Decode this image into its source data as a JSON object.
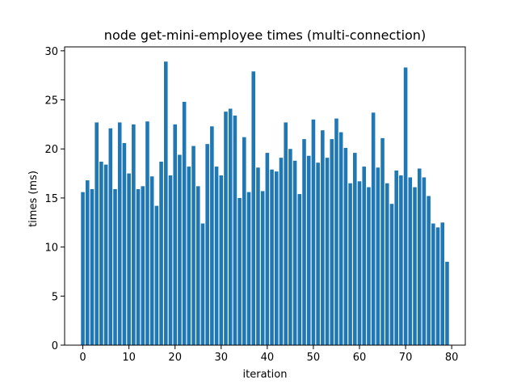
{
  "chart_data": {
    "type": "bar",
    "title": "node get-mini-employee times (multi-connection)",
    "xlabel": "iteration",
    "ylabel": "times (ms)",
    "xlim": [
      -3.95,
      82.95
    ],
    "ylim": [
      0,
      30.4
    ],
    "xticks": [
      0,
      10,
      20,
      30,
      40,
      50,
      60,
      70,
      80
    ],
    "yticks": [
      0,
      5,
      10,
      15,
      20,
      25,
      30
    ],
    "bar_color": "#1f77b4",
    "x": [
      0,
      1,
      2,
      3,
      4,
      5,
      6,
      7,
      8,
      9,
      10,
      11,
      12,
      13,
      14,
      15,
      16,
      17,
      18,
      19,
      20,
      21,
      22,
      23,
      24,
      25,
      26,
      27,
      28,
      29,
      30,
      31,
      32,
      33,
      34,
      35,
      36,
      37,
      38,
      39,
      40,
      41,
      42,
      43,
      44,
      45,
      46,
      47,
      48,
      49,
      50,
      51,
      52,
      53,
      54,
      55,
      56,
      57,
      58,
      59,
      60,
      61,
      62,
      63,
      64,
      65,
      66,
      67,
      68,
      69,
      70,
      71,
      72,
      73,
      74,
      75,
      76,
      77,
      78,
      79
    ],
    "values": [
      15.6,
      16.8,
      15.9,
      22.7,
      18.7,
      18.4,
      22.1,
      15.9,
      22.7,
      20.6,
      17.5,
      22.5,
      15.9,
      16.2,
      22.8,
      17.2,
      14.2,
      18.7,
      28.9,
      17.3,
      22.5,
      19.4,
      24.8,
      18.2,
      20.3,
      16.2,
      12.4,
      20.5,
      22.3,
      18.2,
      17.3,
      23.8,
      24.1,
      23.4,
      15.0,
      21.2,
      15.6,
      27.9,
      18.1,
      15.7,
      19.6,
      17.9,
      17.7,
      19.1,
      22.7,
      20.0,
      18.8,
      15.4,
      21.0,
      19.3,
      23.0,
      18.6,
      21.9,
      19.1,
      21.0,
      23.1,
      21.7,
      20.1,
      16.5,
      19.6,
      16.7,
      18.2,
      16.1,
      23.7,
      18.1,
      21.1,
      16.5,
      14.4,
      17.8,
      17.3,
      28.3,
      17.1,
      16.1,
      18.0,
      17.1,
      15.2,
      12.4,
      12.0,
      12.5,
      8.5
    ]
  }
}
